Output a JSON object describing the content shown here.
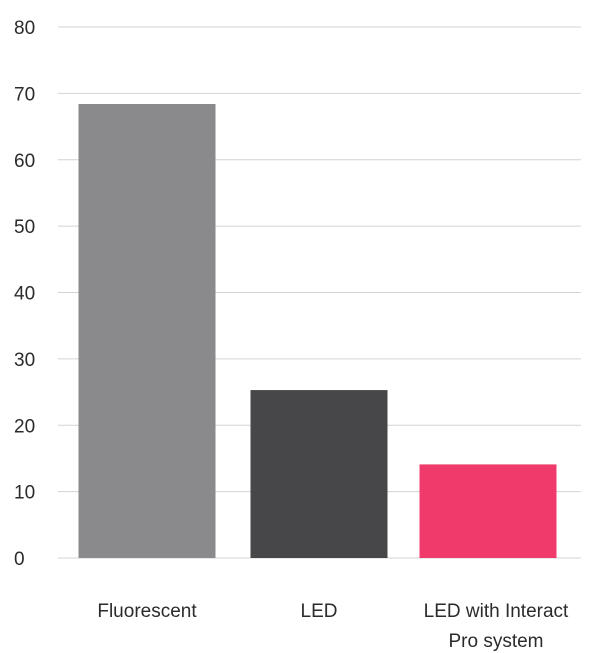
{
  "chart_data": {
    "type": "bar",
    "categories": [
      "Fluorescent",
      "LED",
      "LED with Interact Pro system"
    ],
    "category_lines": [
      [
        "Fluorescent"
      ],
      [
        "LED"
      ],
      [
        "LED with Interact",
        "Pro system"
      ]
    ],
    "values": [
      68.4,
      25.3,
      14.1
    ],
    "colors": [
      "#8a8a8d",
      "#474749",
      "#ef3a6b"
    ],
    "ylim": [
      0,
      80
    ],
    "yticks": [
      0,
      10,
      20,
      30,
      40,
      50,
      60,
      70,
      80
    ],
    "grid": true,
    "title": "",
    "xlabel": "",
    "ylabel": ""
  }
}
